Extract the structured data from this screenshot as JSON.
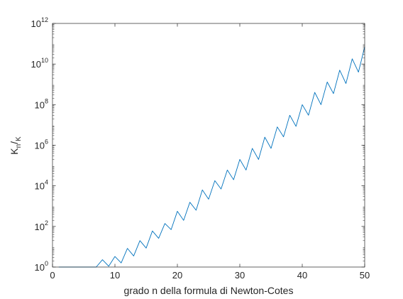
{
  "chart_data": {
    "type": "line",
    "xlabel": "grado n della formula di Newton-Cotes",
    "ylabel": {
      "main": "K",
      "sub": "n",
      "slash": "/",
      "denom": "K"
    },
    "scale": {
      "y": "log"
    },
    "xlim": [
      0,
      50
    ],
    "ylim": [
      1,
      1000000000000
    ],
    "xticks": [
      0,
      10,
      20,
      30,
      40,
      50
    ],
    "xtick_labels": [
      "0",
      "10",
      "20",
      "30",
      "40",
      "50"
    ],
    "yticks": [
      1,
      100,
      10000,
      1000000,
      100000000,
      10000000000,
      1000000000000
    ],
    "ytick_labels": [
      {
        "base": "10",
        "exp": "0"
      },
      {
        "base": "10",
        "exp": "2"
      },
      {
        "base": "10",
        "exp": "4"
      },
      {
        "base": "10",
        "exp": "6"
      },
      {
        "base": "10",
        "exp": "8"
      },
      {
        "base": "10",
        "exp": "10"
      },
      {
        "base": "10",
        "exp": "12"
      }
    ],
    "grid": false,
    "series": [
      {
        "color": "#0072bd",
        "x": [
          1,
          2,
          3,
          4,
          5,
          6,
          7,
          8,
          9,
          10,
          11,
          12,
          13,
          14,
          15,
          16,
          17,
          18,
          19,
          20,
          21,
          22,
          23,
          24,
          25,
          26,
          27,
          28,
          29,
          30,
          31,
          32,
          33,
          34,
          35,
          36,
          37,
          38,
          39,
          40,
          41,
          42,
          43,
          44,
          45,
          46,
          47,
          48,
          49,
          50
        ],
        "y": [
          1,
          1,
          1,
          1,
          1,
          1,
          1,
          2.3,
          1.1,
          3.3,
          1.6,
          8.3,
          3.5,
          20,
          8.6,
          60,
          26,
          140,
          70,
          560,
          200,
          1550,
          630,
          6300,
          2200,
          18000,
          7000,
          60000,
          20000,
          200000,
          60000,
          700000,
          200000,
          2500000,
          700000,
          8000000,
          2600000,
          30000000,
          8500000,
          100000000,
          30000000,
          400000000,
          100000000,
          1300000000,
          350000000,
          5000000000,
          1100000000,
          18000000000,
          4000000000,
          70000000000
        ]
      }
    ]
  }
}
